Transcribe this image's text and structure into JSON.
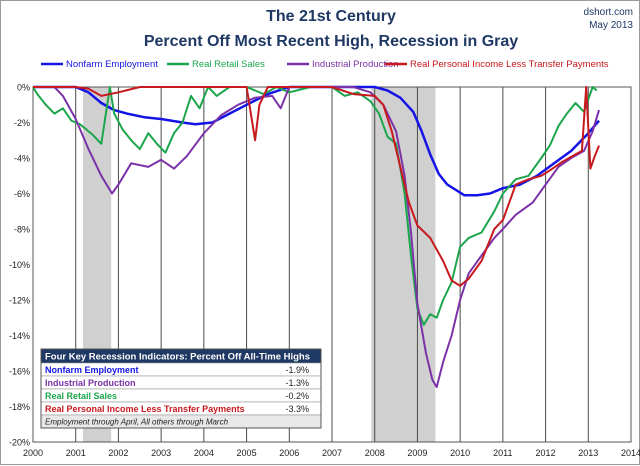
{
  "chart_data": {
    "type": "line",
    "title": "The 21st Century",
    "subtitle": "Percent Off Most Recent High, Recession in Gray",
    "source": "dshort.com",
    "date": "May 2013",
    "xlabel": "",
    "ylabel": "",
    "xlim": [
      2000,
      2014
    ],
    "ylim": [
      -20,
      0
    ],
    "x_ticks": [
      2000,
      2001,
      2002,
      2003,
      2004,
      2005,
      2006,
      2007,
      2008,
      2009,
      2010,
      2011,
      2012,
      2013,
      2014
    ],
    "y_ticks": [
      0,
      -2,
      -4,
      -6,
      -8,
      -10,
      -12,
      -14,
      -16,
      -18,
      -20
    ],
    "y_tick_suffix": "%",
    "grid": "vertical lines at each year",
    "legend_position": "top",
    "recessions": [
      [
        2001.17,
        2001.83
      ],
      [
        2007.92,
        2009.42
      ]
    ],
    "series": [
      {
        "name": "Nonfarm Employment",
        "color": "#1414e6",
        "points": [
          [
            2000,
            0
          ],
          [
            2000.5,
            0
          ],
          [
            2001,
            0
          ],
          [
            2001.3,
            -0.3
          ],
          [
            2001.6,
            -0.9
          ],
          [
            2001.9,
            -1.3
          ],
          [
            2002.2,
            -1.5
          ],
          [
            2002.6,
            -1.7
          ],
          [
            2003,
            -1.8
          ],
          [
            2003.5,
            -2
          ],
          [
            2003.8,
            -2.1
          ],
          [
            2004.2,
            -2.0
          ],
          [
            2004.6,
            -1.5
          ],
          [
            2005,
            -1.0
          ],
          [
            2005.5,
            -0.4
          ],
          [
            2006,
            0
          ],
          [
            2007,
            0
          ],
          [
            2008,
            0
          ],
          [
            2008.3,
            -0.2
          ],
          [
            2008.6,
            -0.6
          ],
          [
            2008.9,
            -1.4
          ],
          [
            2009.1,
            -2.5
          ],
          [
            2009.3,
            -3.8
          ],
          [
            2009.5,
            -4.9
          ],
          [
            2009.7,
            -5.5
          ],
          [
            2009.9,
            -5.8
          ],
          [
            2010.1,
            -6.1
          ],
          [
            2010.4,
            -6.1
          ],
          [
            2010.7,
            -6.0
          ],
          [
            2011,
            -5.7
          ],
          [
            2011.4,
            -5.5
          ],
          [
            2011.8,
            -5.0
          ],
          [
            2012.2,
            -4.3
          ],
          [
            2012.6,
            -3.6
          ],
          [
            2013,
            -2.6
          ],
          [
            2013.25,
            -1.9
          ]
        ]
      },
      {
        "name": "Real Retail Sales",
        "color": "#1ca64c",
        "points": [
          [
            2000,
            0
          ],
          [
            2000.1,
            -0.4
          ],
          [
            2000.3,
            -1.0
          ],
          [
            2000.5,
            -1.5
          ],
          [
            2000.7,
            -1.2
          ],
          [
            2000.9,
            -1.9
          ],
          [
            2001.1,
            -2.1
          ],
          [
            2001.4,
            -2.7
          ],
          [
            2001.6,
            -3.2
          ],
          [
            2001.8,
            0
          ],
          [
            2001.9,
            -1.5
          ],
          [
            2002.1,
            -2.4
          ],
          [
            2002.3,
            -3.0
          ],
          [
            2002.5,
            -3.5
          ],
          [
            2002.7,
            -2.6
          ],
          [
            2002.9,
            -3.2
          ],
          [
            2003.1,
            -3.7
          ],
          [
            2003.3,
            -2.6
          ],
          [
            2003.5,
            -2.0
          ],
          [
            2003.7,
            -0.5
          ],
          [
            2003.9,
            -1.2
          ],
          [
            2004.1,
            0
          ],
          [
            2004.3,
            -0.5
          ],
          [
            2004.6,
            0
          ],
          [
            2005,
            0
          ],
          [
            2005.4,
            -0.4
          ],
          [
            2005.7,
            0
          ],
          [
            2006,
            -0.3
          ],
          [
            2006.5,
            0
          ],
          [
            2007,
            0
          ],
          [
            2007.3,
            -0.5
          ],
          [
            2007.6,
            -0.3
          ],
          [
            2007.9,
            -0.8
          ],
          [
            2008.1,
            -1.5
          ],
          [
            2008.3,
            -2.8
          ],
          [
            2008.5,
            -3.2
          ],
          [
            2008.7,
            -6.0
          ],
          [
            2008.85,
            -9.5
          ],
          [
            2009.0,
            -12.5
          ],
          [
            2009.15,
            -13.4
          ],
          [
            2009.3,
            -12.8
          ],
          [
            2009.45,
            -13.0
          ],
          [
            2009.6,
            -12.0
          ],
          [
            2009.8,
            -11.0
          ],
          [
            2010,
            -9.0
          ],
          [
            2010.2,
            -8.5
          ],
          [
            2010.5,
            -8.2
          ],
          [
            2010.8,
            -7.0
          ],
          [
            2011,
            -6.0
          ],
          [
            2011.3,
            -5.2
          ],
          [
            2011.6,
            -5.0
          ],
          [
            2011.9,
            -4.0
          ],
          [
            2012.1,
            -3.3
          ],
          [
            2012.3,
            -2.2
          ],
          [
            2012.5,
            -1.5
          ],
          [
            2012.7,
            -0.9
          ],
          [
            2012.9,
            -1.4
          ],
          [
            2013.1,
            0
          ],
          [
            2013.2,
            -0.2
          ]
        ]
      },
      {
        "name": "Industrial Production",
        "color": "#7b32a8",
        "points": [
          [
            2000,
            0
          ],
          [
            2000.5,
            0
          ],
          [
            2000.7,
            -0.5
          ],
          [
            2001,
            -1.8
          ],
          [
            2001.3,
            -3.5
          ],
          [
            2001.6,
            -5.0
          ],
          [
            2001.85,
            -6.0
          ],
          [
            2002,
            -5.5
          ],
          [
            2002.3,
            -4.3
          ],
          [
            2002.7,
            -4.5
          ],
          [
            2003,
            -4.1
          ],
          [
            2003.3,
            -4.6
          ],
          [
            2003.6,
            -3.9
          ],
          [
            2004,
            -2.6
          ],
          [
            2004.4,
            -1.6
          ],
          [
            2004.8,
            -1.0
          ],
          [
            2005.2,
            -0.6
          ],
          [
            2005.6,
            -0.5
          ],
          [
            2005.8,
            -1.2
          ],
          [
            2006,
            0
          ],
          [
            2006.5,
            0
          ],
          [
            2007,
            0
          ],
          [
            2007.5,
            0
          ],
          [
            2007.9,
            -0.3
          ],
          [
            2008.2,
            -1.0
          ],
          [
            2008.5,
            -2.5
          ],
          [
            2008.7,
            -5.0
          ],
          [
            2008.85,
            -8.2
          ],
          [
            2009.0,
            -12.2
          ],
          [
            2009.2,
            -15.0
          ],
          [
            2009.35,
            -16.5
          ],
          [
            2009.45,
            -16.9
          ],
          [
            2009.6,
            -15.5
          ],
          [
            2009.8,
            -14.0
          ],
          [
            2010,
            -12.0
          ],
          [
            2010.2,
            -10.5
          ],
          [
            2010.5,
            -9.5
          ],
          [
            2010.8,
            -8.5
          ],
          [
            2011,
            -8.0
          ],
          [
            2011.3,
            -7.2
          ],
          [
            2011.7,
            -6.5
          ],
          [
            2012,
            -5.5
          ],
          [
            2012.3,
            -4.5
          ],
          [
            2012.6,
            -4.0
          ],
          [
            2012.9,
            -3.6
          ],
          [
            2013.1,
            -2.5
          ],
          [
            2013.25,
            -1.3
          ]
        ]
      },
      {
        "name": "Real Personal Income Less Transfer Payments",
        "color": "#c8191e",
        "points": [
          [
            2000,
            0
          ],
          [
            2001,
            0
          ],
          [
            2001.3,
            -0.1
          ],
          [
            2001.6,
            -0.5
          ],
          [
            2002,
            -0.3
          ],
          [
            2002.5,
            0
          ],
          [
            2003,
            0
          ],
          [
            2004,
            0
          ],
          [
            2005,
            0
          ],
          [
            2005.2,
            -3.0
          ],
          [
            2005.3,
            -1.0
          ],
          [
            2005.5,
            0
          ],
          [
            2006,
            0
          ],
          [
            2007,
            0
          ],
          [
            2007.5,
            -0.4
          ],
          [
            2008,
            -0.5
          ],
          [
            2008.2,
            -1.0
          ],
          [
            2008.4,
            -2.5
          ],
          [
            2008.6,
            -4.5
          ],
          [
            2008.8,
            -6.5
          ],
          [
            2009.0,
            -7.8
          ],
          [
            2009.3,
            -8.5
          ],
          [
            2009.6,
            -9.8
          ],
          [
            2009.8,
            -10.9
          ],
          [
            2010.0,
            -11.2
          ],
          [
            2010.2,
            -10.8
          ],
          [
            2010.5,
            -9.8
          ],
          [
            2010.8,
            -8.0
          ],
          [
            2011,
            -7.5
          ],
          [
            2011.3,
            -5.5
          ],
          [
            2011.6,
            -5.2
          ],
          [
            2011.9,
            -5.0
          ],
          [
            2012.1,
            -4.7
          ],
          [
            2012.4,
            -4.2
          ],
          [
            2012.7,
            -3.8
          ],
          [
            2012.85,
            -3.6
          ],
          [
            2012.95,
            0
          ],
          [
            2013.05,
            -4.6
          ],
          [
            2013.15,
            -3.9
          ],
          [
            2013.25,
            -3.3
          ]
        ]
      }
    ]
  },
  "summary_table": {
    "title": "Four Key Recession Indicators: Percent Off All-Time Highs",
    "rows": [
      {
        "label": "Nonfarm Employment",
        "value": "-1.9%",
        "color": "#1414e6"
      },
      {
        "label": "Industrial Production",
        "value": "-1.3%",
        "color": "#7b32a8"
      },
      {
        "label": "Real Retail Sales",
        "value": "-0.2%",
        "color": "#1ca64c"
      },
      {
        "label": "Real Personal Income Less Transfer Payments",
        "value": "-3.3%",
        "color": "#c8191e"
      }
    ],
    "note": "Employment through April, All others through March"
  },
  "colors": {
    "title": "#1f3864",
    "recession": "#d0d0d0",
    "grid": "#4a4a4a",
    "table_header": "#1f3864",
    "table_note_bg": "#e8e8e8"
  }
}
